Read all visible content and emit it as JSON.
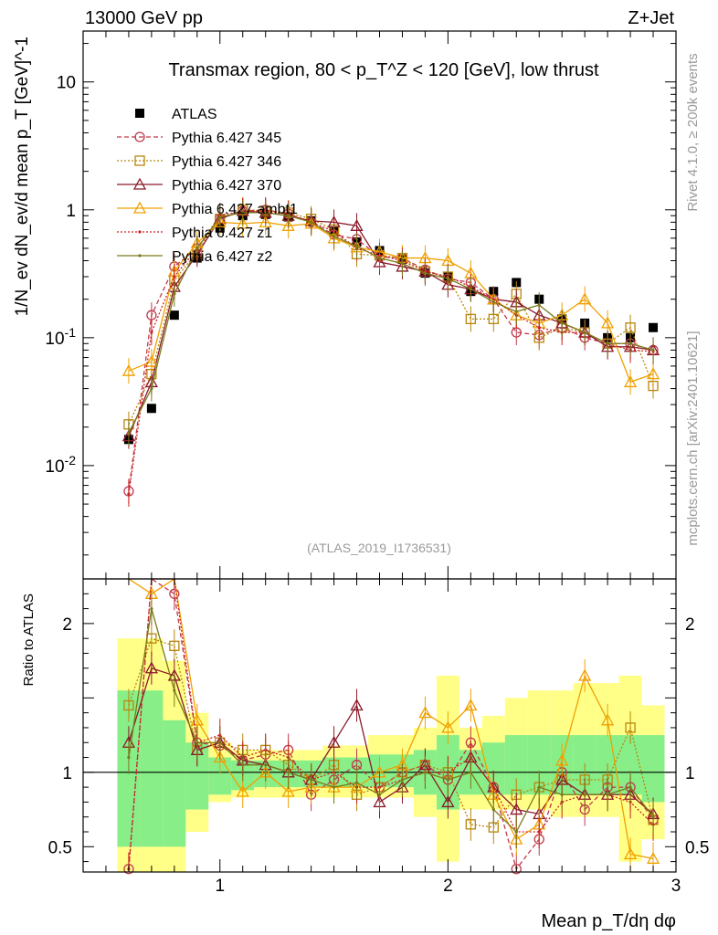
{
  "header": {
    "energy_label": "13000 GeV pp",
    "process_label": "Z+Jet",
    "title": "Transmax region, 80 < p_T^Z < 120 [GeV], low thrust",
    "analysis_id": "(ATLAS_2019_I1736531)",
    "side_rivet": "Rivet 4.1.0, ≥ 200k events",
    "side_mcplots": "mcplots.cern.ch [arXiv:2401.10621]"
  },
  "chart_data": {
    "type": "line",
    "main_panel": {
      "ylabel": "1/N_ev dN_ev/d mean p_T [GeV]^-1",
      "yscale": "log",
      "ylim": [
        0.0013,
        25
      ],
      "yticks": [
        {
          "value": 0.01,
          "label": "10^-2"
        },
        {
          "value": 0.1,
          "label": "10^-1"
        },
        {
          "value": 1,
          "label": "1"
        },
        {
          "value": 10,
          "label": "10"
        }
      ]
    },
    "ratio_panel": {
      "ylabel": "Ratio to ATLAS",
      "ylim": [
        0.33,
        2.3
      ],
      "yticks": [
        0.5,
        1,
        2
      ],
      "band_green": [
        [
          0.5,
          1.55
        ],
        [
          0.5,
          1.55
        ],
        [
          0.5,
          1.35
        ],
        [
          0.75,
          1.2
        ],
        [
          0.85,
          1.1
        ],
        [
          0.88,
          1.08
        ],
        [
          0.9,
          1.08
        ],
        [
          0.9,
          1.08
        ],
        [
          0.9,
          1.08
        ],
        [
          0.9,
          1.1
        ],
        [
          0.9,
          1.1
        ],
        [
          0.9,
          1.12
        ],
        [
          0.9,
          1.12
        ],
        [
          0.85,
          1.15
        ],
        [
          0.75,
          1.25
        ],
        [
          0.85,
          1.15
        ],
        [
          0.85,
          1.2
        ],
        [
          0.85,
          1.25
        ],
        [
          0.85,
          1.25
        ],
        [
          0.85,
          1.25
        ],
        [
          0.85,
          1.25
        ],
        [
          0.85,
          1.25
        ],
        [
          0.85,
          1.25
        ],
        [
          0.8,
          1.25
        ]
      ],
      "band_yellow": [
        [
          0.33,
          1.9
        ],
        [
          0.33,
          1.9
        ],
        [
          0.33,
          1.75
        ],
        [
          0.6,
          1.4
        ],
        [
          0.8,
          1.2
        ],
        [
          0.83,
          1.15
        ],
        [
          0.83,
          1.15
        ],
        [
          0.83,
          1.15
        ],
        [
          0.83,
          1.15
        ],
        [
          0.83,
          1.18
        ],
        [
          0.83,
          1.18
        ],
        [
          0.83,
          1.25
        ],
        [
          0.83,
          1.25
        ],
        [
          0.7,
          1.3
        ],
        [
          0.4,
          1.65
        ],
        [
          0.75,
          1.3
        ],
        [
          0.75,
          1.38
        ],
        [
          0.75,
          1.5
        ],
        [
          0.75,
          1.55
        ],
        [
          0.7,
          1.55
        ],
        [
          0.7,
          1.6
        ],
        [
          0.7,
          1.6
        ],
        [
          0.4,
          1.65
        ],
        [
          0.55,
          1.45
        ]
      ]
    },
    "xlabel": "Mean p_T/dη dφ",
    "xlim": [
      0.4,
      3.0
    ],
    "xticks": [
      1,
      2,
      3
    ],
    "legend": [
      {
        "label": "ATLAS",
        "color": "#000000",
        "marker": "square-filled",
        "dash": "none"
      },
      {
        "label": "Pythia 6.427 345",
        "color": "#c0394b",
        "marker": "circle",
        "dash": "5,3"
      },
      {
        "label": "Pythia 6.427 346",
        "color": "#b8860b",
        "marker": "square",
        "dash": "2,2"
      },
      {
        "label": "Pythia 6.427 370",
        "color": "#8b1a2a",
        "marker": "triangle",
        "dash": "none"
      },
      {
        "label": "Pythia 6.427 ambt1",
        "color": "#f0a000",
        "marker": "triangle",
        "dash": "none"
      },
      {
        "label": "Pythia 6.427 z1",
        "color": "#cc2222",
        "marker": "dot",
        "dash": "2,2"
      },
      {
        "label": "Pythia 6.427 z2",
        "color": "#7a7a1a",
        "marker": "dot",
        "dash": "none"
      }
    ],
    "x": [
      0.6,
      0.7,
      0.8,
      0.9,
      1.0,
      1.1,
      1.2,
      1.3,
      1.4,
      1.5,
      1.6,
      1.7,
      1.8,
      1.9,
      2.0,
      2.1,
      2.2,
      2.3,
      2.4,
      2.5,
      2.6,
      2.7,
      2.8,
      2.9
    ],
    "series": [
      {
        "name": "ATLAS",
        "values": [
          0.016,
          0.028,
          0.15,
          0.42,
          0.72,
          0.9,
          0.92,
          0.88,
          0.82,
          0.68,
          0.56,
          0.48,
          0.41,
          0.32,
          0.3,
          0.23,
          0.23,
          0.27,
          0.2,
          0.14,
          0.13,
          0.1,
          0.1,
          0.12
        ],
        "ratio": [
          1,
          1,
          1,
          1,
          1,
          1,
          1,
          1,
          1,
          1,
          1,
          1,
          1,
          1,
          1,
          1,
          1,
          1,
          1,
          1,
          1,
          1,
          1,
          1
        ]
      },
      {
        "name": "Pythia 6.427 345",
        "values": [
          0.0063,
          0.15,
          0.36,
          0.5,
          0.85,
          0.98,
          1.0,
          0.93,
          0.8,
          0.64,
          0.59,
          0.43,
          0.42,
          0.34,
          0.29,
          0.27,
          0.2,
          0.11,
          0.105,
          0.12,
          0.1,
          0.09,
          0.09,
          0.08
        ],
        "ratio": [
          0.35,
          2.6,
          2.2,
          1.2,
          1.18,
          1.08,
          1.12,
          1.15,
          0.85,
          0.95,
          1.05,
          0.9,
          1.0,
          1.05,
          0.95,
          1.2,
          0.9,
          0.35,
          0.55,
          1.0,
          0.75,
          0.9,
          0.9,
          0.68
        ]
      },
      {
        "name": "Pythia 6.427 346",
        "values": [
          0.021,
          0.052,
          0.28,
          0.47,
          0.85,
          1.0,
          0.98,
          0.95,
          0.85,
          0.7,
          0.45,
          0.44,
          0.42,
          0.33,
          0.3,
          0.14,
          0.14,
          0.22,
          0.1,
          0.12,
          0.11,
          0.09,
          0.12,
          0.042
        ],
        "ratio": [
          1.45,
          1.9,
          1.85,
          1.15,
          1.2,
          1.15,
          1.15,
          1.05,
          0.95,
          1.05,
          0.85,
          0.9,
          1.0,
          1.05,
          1.0,
          0.65,
          0.63,
          0.85,
          0.9,
          0.95,
          0.95,
          0.95,
          1.3,
          0.68
        ]
      },
      {
        "name": "Pythia 6.427 370",
        "values": [
          0.017,
          0.045,
          0.25,
          0.45,
          0.85,
          0.98,
          0.95,
          0.9,
          0.82,
          0.8,
          0.75,
          0.39,
          0.36,
          0.33,
          0.26,
          0.24,
          0.2,
          0.19,
          0.15,
          0.13,
          0.11,
          0.085,
          0.085,
          0.08
        ],
        "ratio": [
          1.2,
          1.7,
          1.65,
          1.15,
          1.2,
          1.08,
          1.05,
          1.0,
          0.95,
          1.2,
          1.45,
          0.8,
          0.9,
          1.05,
          0.8,
          1.1,
          0.9,
          0.75,
          0.72,
          0.95,
          0.85,
          0.85,
          0.85,
          0.72
        ]
      },
      {
        "name": "Pythia 6.427 ambt1",
        "values": [
          0.055,
          0.065,
          0.33,
          0.55,
          0.8,
          0.78,
          0.8,
          0.75,
          0.78,
          0.6,
          0.51,
          0.47,
          0.42,
          0.42,
          0.4,
          0.32,
          0.2,
          0.15,
          0.13,
          0.15,
          0.2,
          0.13,
          0.045,
          0.052
        ],
        "ratio": [
          2.6,
          2.2,
          2.4,
          1.35,
          1.1,
          0.87,
          1.0,
          0.87,
          0.9,
          0.9,
          0.9,
          1.0,
          1.05,
          1.4,
          1.3,
          1.45,
          0.85,
          0.55,
          0.65,
          1.08,
          1.65,
          1.35,
          0.45,
          0.42
        ]
      },
      {
        "name": "Pythia 6.427 z1",
        "values": [
          0.006,
          0.11,
          0.3,
          0.5,
          0.9,
          0.98,
          0.98,
          0.93,
          0.8,
          0.68,
          0.5,
          0.44,
          0.4,
          0.33,
          0.3,
          0.25,
          0.2,
          0.15,
          0.12,
          0.11,
          0.11,
          0.09,
          0.08,
          0.078
        ],
        "ratio": [
          0.35,
          2.5,
          2.5,
          1.2,
          1.25,
          1.1,
          1.15,
          1.1,
          0.95,
          1.0,
          0.9,
          0.9,
          0.95,
          1.0,
          1.0,
          1.1,
          0.9,
          0.6,
          0.6,
          0.8,
          0.85,
          0.85,
          0.8,
          0.65
        ]
      },
      {
        "name": "Pythia 6.427 z2",
        "values": [
          0.018,
          0.04,
          0.22,
          0.5,
          0.88,
          0.95,
          0.95,
          0.9,
          0.8,
          0.62,
          0.52,
          0.42,
          0.38,
          0.32,
          0.29,
          0.24,
          0.19,
          0.16,
          0.18,
          0.13,
          0.11,
          0.09,
          0.09,
          0.08
        ],
        "ratio": [
          1.1,
          2.1,
          1.55,
          1.2,
          1.2,
          1.05,
          1.05,
          1.0,
          0.95,
          0.9,
          0.93,
          0.85,
          0.95,
          1.0,
          0.95,
          1.0,
          0.75,
          0.6,
          0.9,
          0.85,
          0.85,
          0.85,
          0.9,
          0.7
        ]
      }
    ]
  }
}
